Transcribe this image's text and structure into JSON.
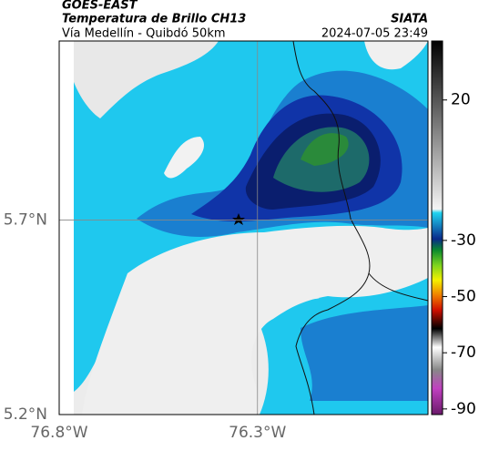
{
  "header": {
    "title": "GOES-EAST",
    "subtitle": "Temperatura de Brillo CH13",
    "route": "Vía Medellín - Quibdó 50km",
    "source": "SIATA",
    "datetime": "2024-07-05 23:49"
  },
  "map": {
    "xlim": [
      -76.8,
      -75.87
    ],
    "ylim": [
      5.2,
      6.16
    ],
    "xticks": [
      {
        "value": -76.8,
        "label": "76.8°W"
      },
      {
        "value": -76.3,
        "label": "76.3°W"
      }
    ],
    "yticks": [
      {
        "value": 5.2,
        "label": "5.2°N"
      },
      {
        "value": 5.7,
        "label": "5.7°N"
      }
    ],
    "colorbar": {
      "lim": [
        41,
        -92
      ],
      "ticks": [
        20,
        -30,
        -50,
        -70,
        -90
      ]
    }
  }
}
